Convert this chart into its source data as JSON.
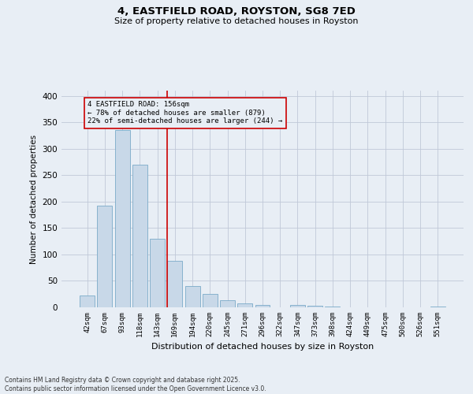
{
  "title": "4, EASTFIELD ROAD, ROYSTON, SG8 7ED",
  "subtitle": "Size of property relative to detached houses in Royston",
  "xlabel": "Distribution of detached houses by size in Royston",
  "ylabel": "Number of detached properties",
  "footnote": "Contains HM Land Registry data © Crown copyright and database right 2025.\nContains public sector information licensed under the Open Government Licence v3.0.",
  "categories": [
    "42sqm",
    "67sqm",
    "93sqm",
    "118sqm",
    "143sqm",
    "169sqm",
    "194sqm",
    "220sqm",
    "245sqm",
    "271sqm",
    "296sqm",
    "322sqm",
    "347sqm",
    "373sqm",
    "398sqm",
    "424sqm",
    "449sqm",
    "475sqm",
    "500sqm",
    "526sqm",
    "551sqm"
  ],
  "values": [
    22,
    193,
    335,
    270,
    130,
    88,
    40,
    25,
    14,
    8,
    5,
    0,
    4,
    3,
    1,
    0,
    0,
    0,
    0,
    0,
    2
  ],
  "bar_color": "#c8d8e8",
  "bar_edgecolor": "#7aaac8",
  "grid_color": "#c0c8d8",
  "background_color": "#e8eef5",
  "ref_line_x": 4.56,
  "ref_line_color": "#cc0000",
  "annotation_text": "4 EASTFIELD ROAD: 156sqm\n← 78% of detached houses are smaller (879)\n22% of semi-detached houses are larger (244) →",
  "annotation_box_color": "#cc0000",
  "ylim": [
    0,
    410
  ],
  "yticks": [
    0,
    50,
    100,
    150,
    200,
    250,
    300,
    350,
    400
  ]
}
